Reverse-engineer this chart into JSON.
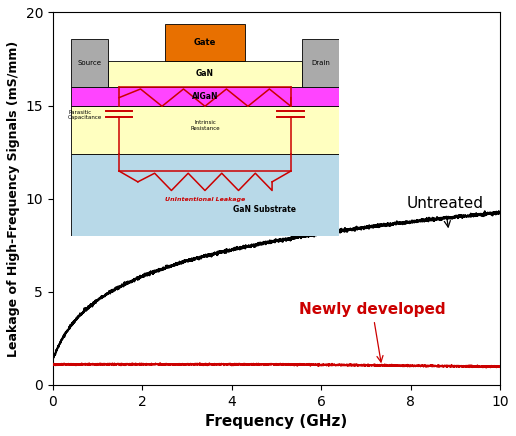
{
  "xlabel": "Frequency (GHz)",
  "ylabel": "Leakage of High-Frequency Signals (mS/mm)",
  "xlim": [
    0,
    10
  ],
  "ylim": [
    0,
    20
  ],
  "xticks": [
    0,
    2,
    4,
    6,
    8,
    10
  ],
  "yticks": [
    0,
    5,
    10,
    15,
    20
  ],
  "untreated_color": "#000000",
  "newly_color": "#cc0000",
  "label_untreated": "Untreated",
  "label_newly": "Newly developed",
  "inset": {
    "gan_substrate_color": "#b8d9e8",
    "gan_layer_color": "#ffffc0",
    "algan_color": "#ff44ff",
    "source_drain_color": "#aaaaaa",
    "gate_color": "#e87000",
    "circuit_color": "#cc0000",
    "outline_color": "#000000"
  }
}
